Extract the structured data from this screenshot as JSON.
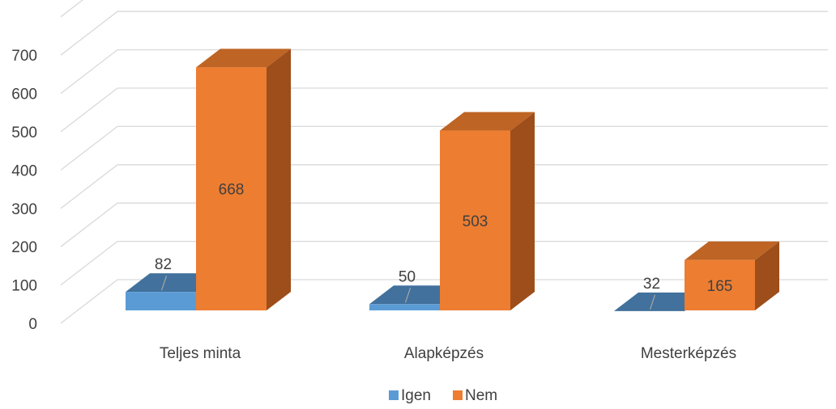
{
  "chart_data": {
    "type": "bar",
    "subtype": "3d-clustered-column",
    "categories": [
      "Teljes minta",
      "Alapképzés",
      "Mesterképzés"
    ],
    "series": [
      {
        "name": "Igen",
        "values": [
          82,
          50,
          32
        ],
        "color": "#5B9BD5"
      },
      {
        "name": "Nem",
        "values": [
          668,
          503,
          165
        ],
        "color": "#ED7D31"
      }
    ],
    "y_ticks": [
      "0",
      "100",
      "200",
      "300",
      "400",
      "500",
      "600",
      "700"
    ],
    "ylim": [
      0,
      800
    ],
    "grid": true,
    "legend_position": "bottom",
    "data_labels": true
  }
}
